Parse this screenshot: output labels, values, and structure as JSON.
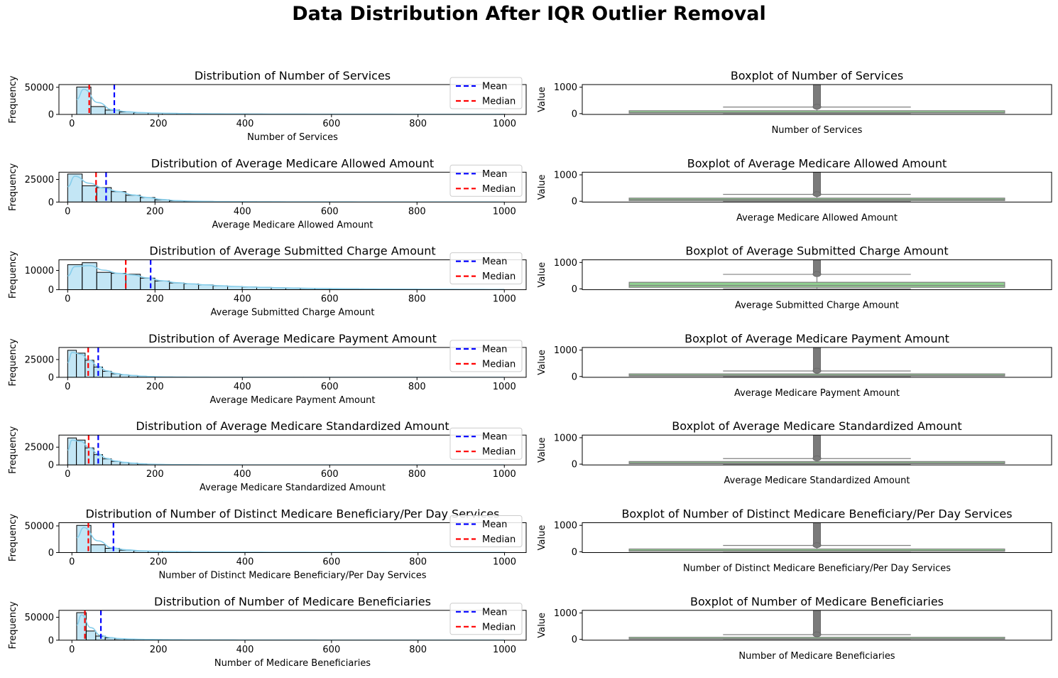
{
  "title": "Data Distribution After IQR Outlier Removal",
  "colors": {
    "hist_fill": "#87ceeb",
    "kde_line": "#87ceeb",
    "mean_line": "#0000ff",
    "median_line": "#ff0000",
    "box_fill": "#90d090",
    "box_edge": "#808080"
  },
  "chart_data": [
    {
      "type": "bar",
      "title": "Distribution of Number of Services",
      "xlabel": "Number of Services",
      "ylabel": "Frequency",
      "xlim": [
        -30,
        1050
      ],
      "ylim": [
        0,
        55000
      ],
      "xticks": [
        "0",
        "200",
        "400",
        "600",
        "800",
        "1000"
      ],
      "yticks": [
        "0",
        "50000"
      ],
      "ytick_values": [
        0,
        50000
      ],
      "bin_start": 11,
      "bin_width": 33,
      "values": [
        50500,
        14500,
        8000,
        4500,
        3200,
        2500,
        2000,
        1600,
        1300,
        1100,
        950,
        850,
        750,
        650,
        600,
        550,
        500,
        450,
        420,
        400,
        380,
        360,
        340,
        320,
        300,
        290,
        280,
        270,
        260,
        250
      ],
      "mean": 98,
      "median": 40,
      "legend": [
        "Mean",
        "Median"
      ]
    },
    {
      "type": "bar",
      "title": "Distribution of Average Medicare Allowed Amount",
      "xlabel": "Average Medicare Allowed Amount",
      "ylabel": "Frequency",
      "xlim": [
        -20,
        1050
      ],
      "ylim": [
        0,
        33000
      ],
      "xticks": [
        "0",
        "200",
        "400",
        "600",
        "800",
        "1000"
      ],
      "yticks": [
        "0",
        "25000"
      ],
      "ytick_values": [
        0,
        25000
      ],
      "bin_start": 0,
      "bin_width": 33.3,
      "values": [
        31000,
        18000,
        16000,
        11500,
        7500,
        5000,
        2500,
        1400,
        900,
        700,
        500,
        400,
        350,
        300,
        250,
        220,
        200,
        180,
        160,
        150,
        140,
        130,
        120,
        110,
        100,
        90,
        80,
        70,
        60,
        50
      ],
      "mean": 88,
      "median": 65,
      "legend": [
        "Mean",
        "Median"
      ]
    },
    {
      "type": "bar",
      "title": "Distribution of Average Submitted Charge Amount",
      "xlabel": "Average Submitted Charge Amount",
      "ylabel": "Frequency",
      "xlim": [
        -20,
        1050
      ],
      "ylim": [
        0,
        15500
      ],
      "xticks": [
        "0",
        "200",
        "400",
        "600",
        "800",
        "1000"
      ],
      "yticks": [
        "0",
        "10000"
      ],
      "ytick_values": [
        0,
        10000
      ],
      "bin_start": 0,
      "bin_width": 33.3,
      "values": [
        13000,
        14000,
        9000,
        8500,
        8000,
        6000,
        4500,
        3500,
        3000,
        2500,
        2000,
        1700,
        1400,
        1200,
        1000,
        850,
        700,
        600,
        500,
        450,
        400,
        350,
        300,
        250,
        220,
        200,
        180,
        160,
        140,
        120
      ],
      "mean": 190,
      "median": 133,
      "legend": [
        "Mean",
        "Median"
      ]
    },
    {
      "type": "bar",
      "title": "Distribution of Average Medicare Payment Amount",
      "xlabel": "Average Medicare Payment Amount",
      "ylabel": "Frequency",
      "xlim": [
        -20,
        1050
      ],
      "ylim": [
        0,
        42000
      ],
      "xticks": [
        "0",
        "200",
        "400",
        "600",
        "800",
        "1000"
      ],
      "yticks": [
        "0",
        "25000"
      ],
      "ytick_values": [
        0,
        25000
      ],
      "bin_start": 0,
      "bin_width": 20,
      "values": [
        38000,
        34000,
        24000,
        14500,
        8500,
        5000,
        3500,
        2500,
        1500,
        1000,
        700,
        500,
        400,
        300,
        250,
        200,
        160,
        130,
        110,
        90,
        80,
        70,
        60,
        50,
        45,
        40,
        35,
        30,
        25,
        20
      ],
      "mean": 70,
      "median": 47,
      "legend": [
        "Mean",
        "Median"
      ]
    },
    {
      "type": "bar",
      "title": "Distribution of Average Medicare Standardized Amount",
      "xlabel": "Average Medicare Standardized Amount",
      "ylabel": "Frequency",
      "xlim": [
        -20,
        1050
      ],
      "ylim": [
        0,
        42000
      ],
      "xticks": [
        "0",
        "200",
        "400",
        "600",
        "800",
        "1000"
      ],
      "yticks": [
        "0",
        "25000"
      ],
      "ytick_values": [
        0,
        25000
      ],
      "bin_start": 0,
      "bin_width": 20,
      "values": [
        38000,
        35000,
        24000,
        14500,
        8500,
        5000,
        3500,
        2500,
        1500,
        1000,
        700,
        500,
        400,
        300,
        250,
        200,
        160,
        130,
        110,
        90,
        80,
        70,
        60,
        50,
        45,
        40,
        35,
        30,
        25,
        20
      ],
      "mean": 70,
      "median": 48,
      "legend": [
        "Mean",
        "Median"
      ]
    },
    {
      "type": "bar",
      "title": "Distribution of Number of Distinct Medicare Beneficiary/Per Day Services",
      "xlabel": "Number of Distinct Medicare Beneficiary/Per Day Services",
      "ylabel": "Frequency",
      "xlim": [
        -30,
        1050
      ],
      "ylim": [
        0,
        56000
      ],
      "xticks": [
        "0",
        "200",
        "400",
        "600",
        "800",
        "1000"
      ],
      "yticks": [
        "0",
        "50000"
      ],
      "ytick_values": [
        0,
        50000
      ],
      "bin_start": 11,
      "bin_width": 33,
      "values": [
        51000,
        14500,
        8000,
        4500,
        3200,
        2500,
        2000,
        1600,
        1300,
        1100,
        950,
        850,
        750,
        650,
        600,
        550,
        500,
        450,
        420,
        400,
        380,
        360,
        340,
        320,
        300,
        290,
        280,
        270,
        260,
        250
      ],
      "mean": 96,
      "median": 38,
      "legend": [
        "Mean",
        "Median"
      ]
    },
    {
      "type": "bar",
      "title": "Distribution of Number of Medicare Beneficiaries",
      "xlabel": "Number of Medicare Beneficiaries",
      "ylabel": "Frequency",
      "xlim": [
        -30,
        1050
      ],
      "ylim": [
        0,
        65000
      ],
      "xticks": [
        "0",
        "200",
        "400",
        "600",
        "800",
        "1000"
      ],
      "yticks": [
        "0",
        "50000"
      ],
      "ytick_values": [
        0,
        50000
      ],
      "bin_start": 11,
      "bin_width": 22,
      "values": [
        60000,
        20000,
        9000,
        5000,
        3200,
        2500,
        2000,
        1600,
        1300,
        1100,
        950,
        850,
        750,
        650,
        600,
        550,
        500,
        450,
        420,
        400,
        380,
        360,
        340,
        320,
        300,
        290,
        280,
        270,
        260,
        250
      ],
      "mean": 67,
      "median": 30,
      "legend": [
        "Mean",
        "Median"
      ]
    },
    {
      "type": "box",
      "title": "Boxplot of Number of Services",
      "xlabel": "Number of Services",
      "ylabel": "Value",
      "ylim": [
        -30,
        1100
      ],
      "yticks": [
        "0",
        "1000"
      ],
      "ytick_values": [
        0,
        1000
      ],
      "q1": 20,
      "median": 40,
      "q3": 110,
      "whisker_low": 11,
      "whisker_high": 250,
      "flier_min": 260,
      "flier_max": 1100
    },
    {
      "type": "box",
      "title": "Boxplot of Average Medicare Allowed Amount",
      "xlabel": "Average Medicare Allowed Amount",
      "ylabel": "Value",
      "ylim": [
        -30,
        1100
      ],
      "yticks": [
        "0",
        "1000"
      ],
      "ytick_values": [
        0,
        1000
      ],
      "q1": 25,
      "median": 65,
      "q3": 120,
      "whisker_low": 0,
      "whisker_high": 260,
      "flier_min": 270,
      "flier_max": 1100
    },
    {
      "type": "box",
      "title": "Boxplot of Average Submitted Charge Amount",
      "xlabel": "Average Submitted Charge Amount",
      "ylabel": "Value",
      "ylim": [
        -30,
        1100
      ],
      "yticks": [
        "0",
        "1000"
      ],
      "ytick_values": [
        0,
        1000
      ],
      "q1": 60,
      "median": 133,
      "q3": 250,
      "whisker_low": 0,
      "whisker_high": 550,
      "flier_min": 560,
      "flier_max": 1100
    },
    {
      "type": "box",
      "title": "Boxplot of Average Medicare Payment Amount",
      "xlabel": "Average Medicare Payment Amount",
      "ylabel": "Value",
      "ylim": [
        -30,
        1100
      ],
      "yticks": [
        "0",
        "1000"
      ],
      "ytick_values": [
        0,
        1000
      ],
      "q1": 18,
      "median": 47,
      "q3": 100,
      "whisker_low": 0,
      "whisker_high": 210,
      "flier_min": 220,
      "flier_max": 1100
    },
    {
      "type": "box",
      "title": "Boxplot of Average Medicare Standardized Amount",
      "xlabel": "Average Medicare Standardized Amount",
      "ylabel": "Value",
      "ylim": [
        -30,
        1100
      ],
      "yticks": [
        "0",
        "1000"
      ],
      "ytick_values": [
        0,
        1000
      ],
      "q1": 18,
      "median": 48,
      "q3": 100,
      "whisker_low": 0,
      "whisker_high": 210,
      "flier_min": 220,
      "flier_max": 1100
    },
    {
      "type": "box",
      "title": "Boxplot of Number of Distinct Medicare Beneficiary/Per Day Services",
      "xlabel": "Number of Distinct Medicare Beneficiary/Per Day Services",
      "ylabel": "Value",
      "ylim": [
        -30,
        1100
      ],
      "yticks": [
        "0",
        "1000"
      ],
      "ytick_values": [
        0,
        1000
      ],
      "q1": 18,
      "median": 38,
      "q3": 105,
      "whisker_low": 11,
      "whisker_high": 240,
      "flier_min": 250,
      "flier_max": 1100
    },
    {
      "type": "box",
      "title": "Boxplot of Number of Medicare Beneficiaries",
      "xlabel": "Number of Medicare Beneficiaries",
      "ylabel": "Value",
      "ylim": [
        -30,
        1100
      ],
      "yticks": [
        "0",
        "1000"
      ],
      "ytick_values": [
        0,
        1000
      ],
      "q1": 15,
      "median": 30,
      "q3": 80,
      "whisker_low": 11,
      "whisker_high": 180,
      "flier_min": 190,
      "flier_max": 1100
    }
  ]
}
